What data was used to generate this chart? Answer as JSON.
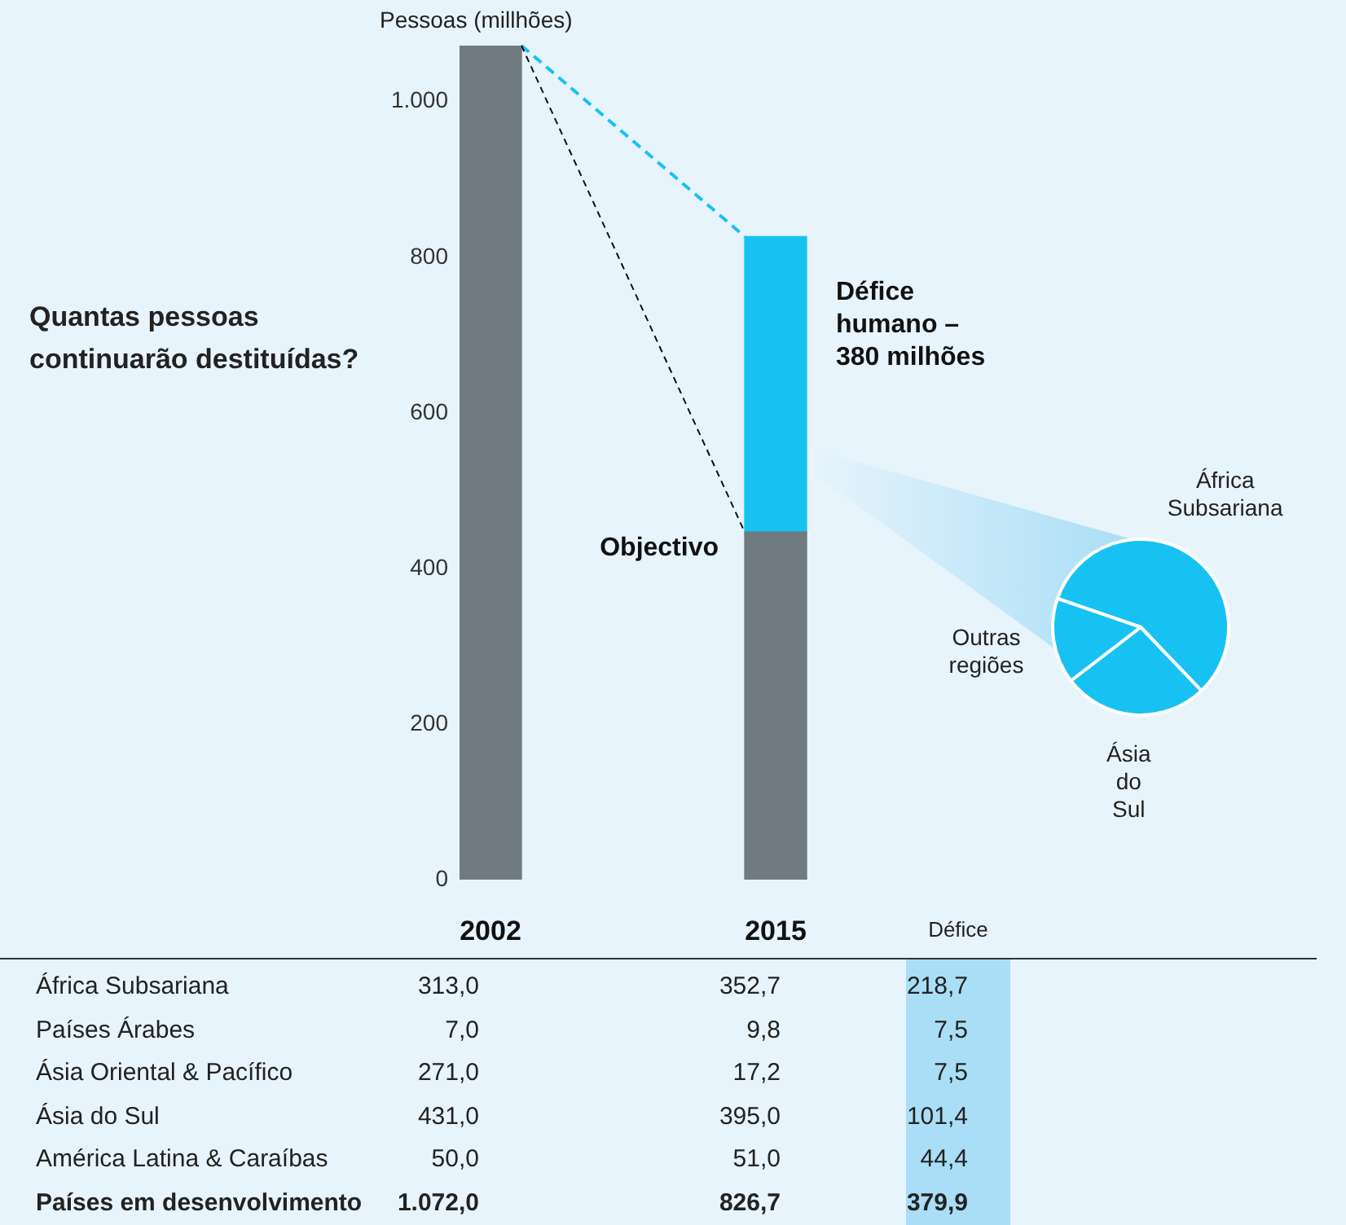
{
  "chart_data": [
    {
      "type": "bar",
      "stacked": true,
      "title": "Quantas pessoas continuarão destituídas?",
      "ylabel": "Pessoas (millhões)",
      "categories": [
        "2002",
        "2015"
      ],
      "series": [
        {
          "values": [
            1072,
            446.8
          ],
          "color": "#6f7b80"
        },
        {
          "values": [
            null,
            379.9
          ],
          "color": "#17c2f2"
        }
      ],
      "ylim": [
        0,
        1072
      ],
      "yticks": [
        0,
        200,
        400,
        600,
        800,
        {
          "value": 1000,
          "label": "1.000"
        }
      ],
      "grid": false,
      "legend": false,
      "annotations": [
        "Objectivo",
        "Défice humano – 380 milhões"
      ]
    },
    {
      "type": "pie",
      "categories": [
        "África Subsariana",
        "Ásia do Sul",
        "Outras regiões"
      ],
      "values": [
        57.6,
        26.7,
        15.7
      ],
      "colors": [
        "#17c2f2",
        "#17c2f2",
        "#17c2f2"
      ],
      "legend": false
    },
    {
      "type": "other",
      "categories": [
        "África Subsariana",
        "Países Árabes",
        "Ásia Oriental & Pacífico",
        "Ásia do Sul",
        "América Latina & Caraíbas",
        "Países em desenvolvimento"
      ],
      "series": [
        {
          "values": [
            313,
            7,
            271,
            431,
            50,
            1072
          ],
          "value_labels": [
            "313,0",
            "7,0",
            "271,0",
            "431,0",
            "50,0",
            "1.072,0"
          ]
        },
        {
          "values": [
            352.7,
            9.8,
            17.2,
            395,
            51,
            826.7
          ],
          "value_labels": [
            "352,7",
            "9,8",
            "17,2",
            "395,0",
            "51,0",
            "826,7"
          ]
        },
        {
          "name": "Défice",
          "values": [
            218.7,
            7.5,
            7.5,
            101.4,
            44.4,
            379.9
          ],
          "value_labels": [
            "218,7",
            "7,5",
            "7,5",
            "101,4",
            "44,4",
            "379,9"
          ]
        }
      ]
    }
  ]
}
